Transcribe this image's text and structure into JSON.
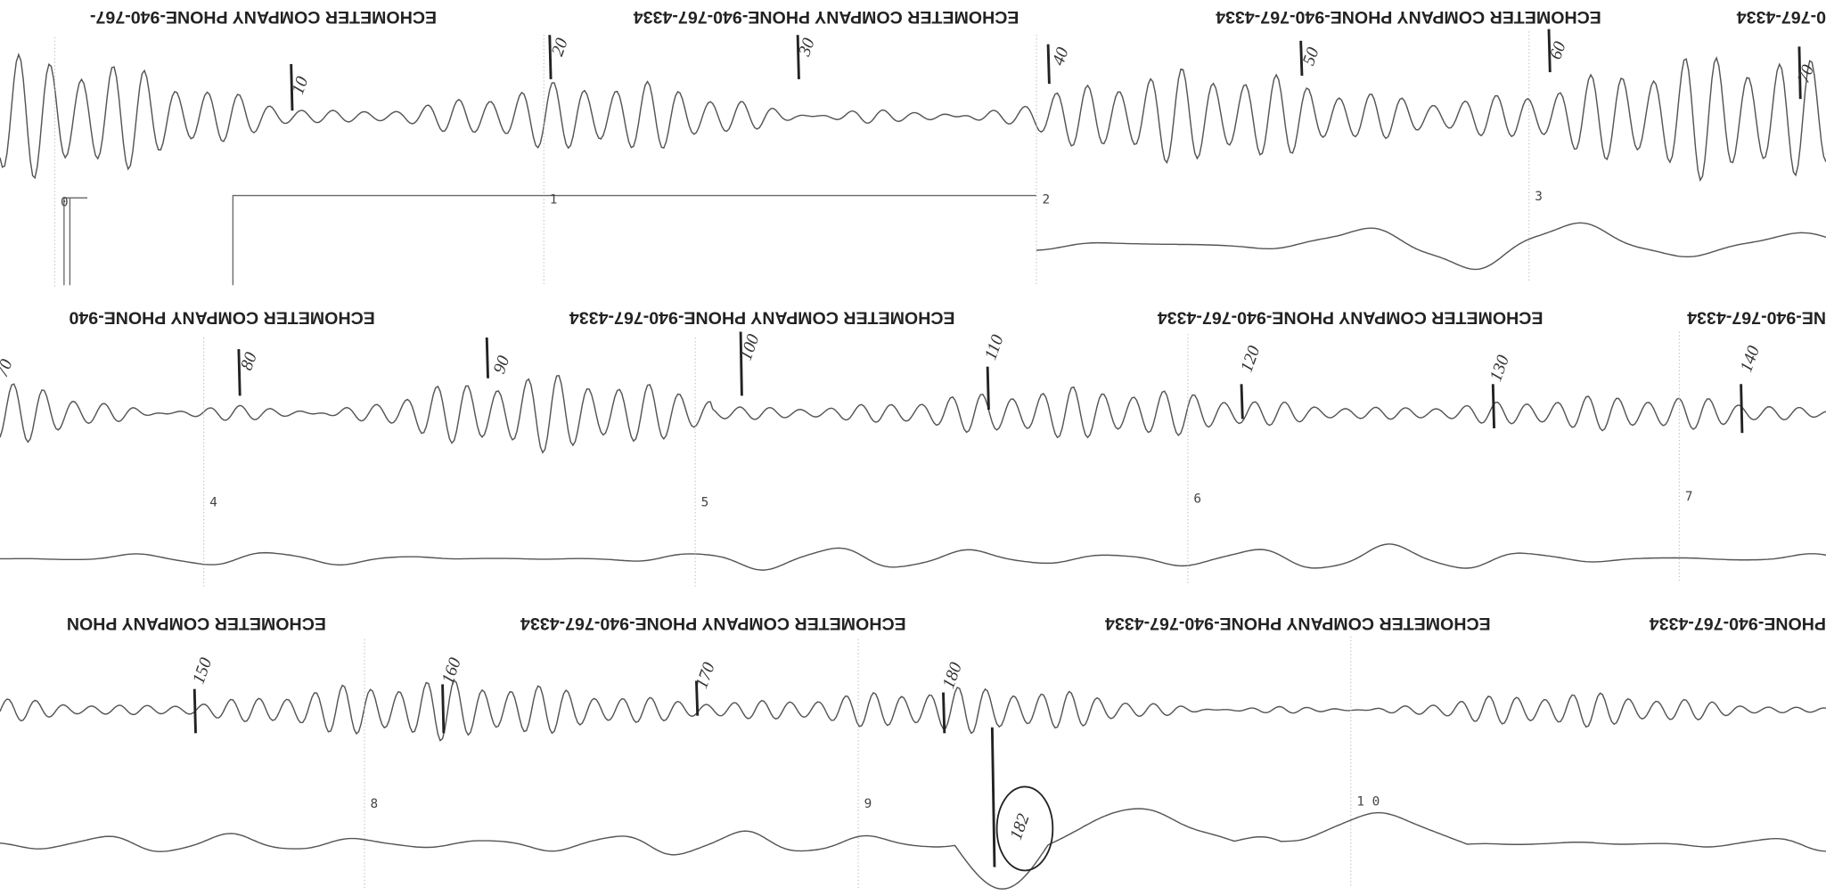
{
  "strips": [
    {
      "headers": [
        "ECHOMETER COMPANY  PHONE-940-767-",
        "ECHOMETER COMPANY  PHONE-940-767-4334",
        "ECHOMETER COMPANY  PHONE-940-767-4334",
        "0-767-4334"
      ],
      "joint_marks": [
        "10",
        "20",
        "30",
        "40",
        "50",
        "60",
        "70"
      ],
      "second_marks": [
        "0",
        "1",
        "2",
        "3"
      ]
    },
    {
      "headers": [
        "ECHOMETER COMPANY  PHONE-940",
        "ECHOMETER COMPANY  PHONE-940-767-4334",
        "ECHOMETER COMPANY  PHONE-940-767-4334",
        "NE-940-767-4334"
      ],
      "joint_marks": [
        "70",
        "80",
        "90",
        "100",
        "110",
        "120",
        "130",
        "140"
      ],
      "second_marks": [
        "4",
        "5",
        "6",
        "7"
      ]
    },
    {
      "headers": [
        "ECHOMETER COMPANY  PHON",
        "ECHOMETER COMPANY  PHONE-940-767-4334",
        "ECHOMETER COMPANY  PHONE-940-767-4334",
        "PHONE-940-767-4334"
      ],
      "joint_marks": [
        "150",
        "160",
        "170",
        "180",
        "182"
      ],
      "second_marks": [
        "8",
        "9",
        "1 0"
      ]
    }
  ]
}
